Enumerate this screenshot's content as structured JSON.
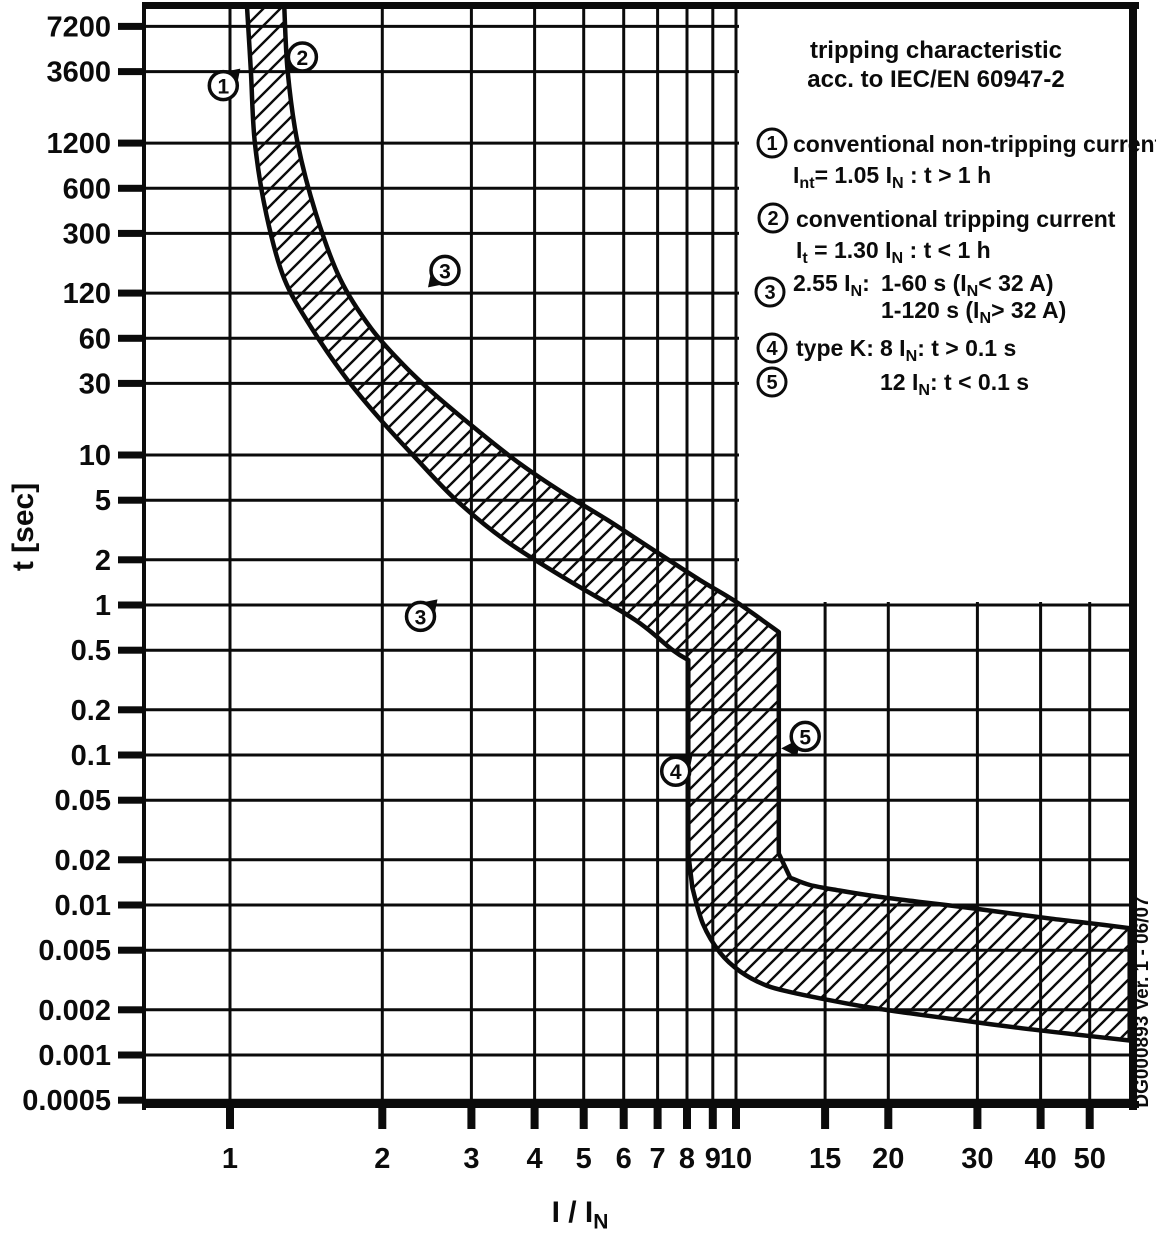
{
  "page": {
    "background": "#ffffff"
  },
  "figure": {
    "footer_vertical_text": "DG000893 Ver. 1 - 06/07"
  },
  "axes": {
    "x_label": "I / I~N~",
    "y_label": "t [sec]",
    "x_ticks": [
      {
        "v": 1,
        "label": "1"
      },
      {
        "v": 2,
        "label": "2"
      },
      {
        "v": 3,
        "label": "3"
      },
      {
        "v": 4,
        "label": "4"
      },
      {
        "v": 5,
        "label": "5"
      },
      {
        "v": 6,
        "label": "6"
      },
      {
        "v": 7,
        "label": "7"
      },
      {
        "v": 8,
        "label": "8"
      },
      {
        "v": 9,
        "label": "9"
      },
      {
        "v": 10,
        "label": "10"
      },
      {
        "v": 15,
        "label": "15"
      },
      {
        "v": 20,
        "label": "20"
      },
      {
        "v": 30,
        "label": "30"
      },
      {
        "v": 40,
        "label": "40"
      },
      {
        "v": 50,
        "label": "50"
      }
    ],
    "y_ticks": [
      {
        "v": 7200,
        "label": "7200"
      },
      {
        "v": 3600,
        "label": "3600"
      },
      {
        "v": 1200,
        "label": "1200"
      },
      {
        "v": 600,
        "label": "600"
      },
      {
        "v": 300,
        "label": "300"
      },
      {
        "v": 120,
        "label": "120"
      },
      {
        "v": 60,
        "label": "60"
      },
      {
        "v": 30,
        "label": "30"
      },
      {
        "v": 10,
        "label": "10"
      },
      {
        "v": 5,
        "label": "5"
      },
      {
        "v": 2,
        "label": "2"
      },
      {
        "v": 1,
        "label": "1"
      },
      {
        "v": 0.5,
        "label": "0.5"
      },
      {
        "v": 0.2,
        "label": "0.2"
      },
      {
        "v": 0.1,
        "label": "0.1"
      },
      {
        "v": 0.05,
        "label": "0.05"
      },
      {
        "v": 0.02,
        "label": "0.02"
      },
      {
        "v": 0.01,
        "label": "0.01"
      },
      {
        "v": 0.005,
        "label": "0.005"
      },
      {
        "v": 0.002,
        "label": "0.002"
      },
      {
        "v": 0.001,
        "label": "0.001"
      },
      {
        "v": 0.0005,
        "label": "0.0005"
      }
    ]
  },
  "legend": {
    "title_line1": "tripping characteristic",
    "title_line2": "acc. to IEC/EN 60947-2",
    "items": [
      {
        "num": "1",
        "lines": [
          "conventional non-tripping current",
          "I~nt~= 1.05 I~N~ : t > 1 h"
        ]
      },
      {
        "num": "2",
        "lines": [
          "conventional tripping current",
          "I~t~ = 1.30 I~N~ : t < 1 h"
        ]
      },
      {
        "num": "3",
        "label": "2.55 I~N~:",
        "lines": [
          "1-60 s (I~N~< 32 A)",
          "1-120 s (I~N~> 32 A)"
        ]
      },
      {
        "num": "4",
        "label": "type K:",
        "lines": [
          "8 I~N~: t > 0.1 s"
        ]
      },
      {
        "num": "5",
        "lines": [
          "12 I~N~: t < 0.1 s"
        ]
      }
    ]
  },
  "chart_data": {
    "type": "area",
    "title": "tripping characteristic acc. to IEC/EN 60947-2",
    "description": "Hatched tolerance band of a type K miniature circuit breaker trip curve: thermal zone between 1.05 and 1.30 I/IN at long times, magnetic trip between 8 and 12 I/IN, instantaneous region below 0.1 s.",
    "x_axis": {
      "label": "I / IN",
      "scale": "log",
      "range": [
        0.68,
        60
      ]
    },
    "y_axis": {
      "label": "t [sec]",
      "scale": "log",
      "range": [
        0.0005,
        10000
      ]
    },
    "grid": true,
    "band": {
      "left_thermal": [
        [
          1.08,
          10000
        ],
        [
          1.1,
          3600
        ],
        [
          1.12,
          1200
        ],
        [
          1.18,
          400
        ],
        [
          1.28,
          150
        ],
        [
          1.45,
          70
        ],
        [
          1.68,
          34
        ],
        [
          1.96,
          18
        ],
        [
          2.33,
          9.5
        ],
        [
          2.8,
          5.0
        ],
        [
          3.5,
          2.7
        ],
        [
          4.6,
          1.5
        ],
        [
          6.3,
          0.8
        ],
        [
          7.5,
          0.5
        ],
        [
          8.05,
          0.43
        ]
      ],
      "left_step_bottom_t": 0.022,
      "left_tail": [
        [
          8.2,
          0.013
        ],
        [
          8.6,
          0.0075
        ],
        [
          9.3,
          0.0048
        ],
        [
          10.2,
          0.0036
        ],
        [
          11.5,
          0.0029
        ],
        [
          13,
          0.0026
        ],
        [
          15,
          0.00235
        ],
        [
          18,
          0.0021
        ],
        [
          22,
          0.0019
        ],
        [
          28,
          0.0017
        ],
        [
          36,
          0.00152
        ],
        [
          46,
          0.00138
        ],
        [
          60,
          0.00125
        ]
      ],
      "right_thermal": [
        [
          1.28,
          10000
        ],
        [
          1.3,
          3600
        ],
        [
          1.36,
          1200
        ],
        [
          1.48,
          400
        ],
        [
          1.65,
          150
        ],
        [
          1.9,
          70
        ],
        [
          2.2,
          40
        ],
        [
          2.55,
          25
        ],
        [
          3.1,
          14.4
        ],
        [
          3.75,
          8.7
        ],
        [
          4.55,
          5.6
        ],
        [
          5.6,
          3.65
        ],
        [
          6.9,
          2.3
        ],
        [
          8.5,
          1.46
        ],
        [
          10,
          1.05
        ],
        [
          12.15,
          0.66
        ]
      ],
      "right_step_bottom_t": 0.022,
      "right_tail": [
        [
          12.8,
          0.0152
        ],
        [
          14,
          0.0136
        ],
        [
          16,
          0.0125
        ],
        [
          19,
          0.0114
        ],
        [
          23,
          0.0105
        ],
        [
          28,
          0.0097
        ],
        [
          34,
          0.0089
        ],
        [
          42,
          0.0081
        ],
        [
          51,
          0.0075
        ],
        [
          60,
          0.007
        ]
      ]
    },
    "markers": [
      {
        "label": "1",
        "i": 0.97,
        "t": 2900,
        "dir": "ne"
      },
      {
        "label": "2",
        "i": 1.39,
        "t": 4500,
        "dir": "sw"
      },
      {
        "label": "3",
        "i": 2.66,
        "t": 170,
        "dir": "sw"
      },
      {
        "label": "3",
        "i": 2.38,
        "t": 0.84,
        "dir": "ne"
      },
      {
        "label": "4",
        "i": 7.6,
        "t": 0.078,
        "dir": "ne"
      },
      {
        "label": "5",
        "i": 13.7,
        "t": 0.133,
        "dir": "w"
      }
    ]
  },
  "colors": {
    "ink": "#0b0b0b",
    "paper": "#ffffff"
  }
}
